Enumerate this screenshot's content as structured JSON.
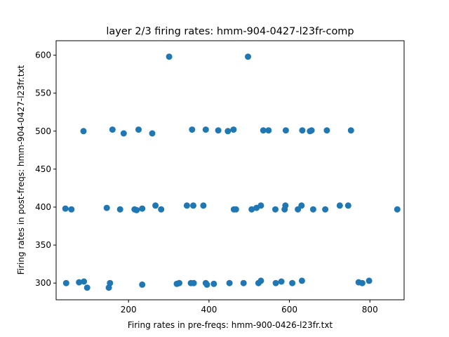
{
  "chart_data": {
    "type": "scatter",
    "title": "layer 2/3 firing rates: hmm-904-0427-l23fr-comp",
    "xlabel": "Firing rates in pre-freqs: hmm-900-0426-l23fr.txt",
    "ylabel": "Firing rates in post-freqs: hmm-904-0427-l23fr.txt",
    "xlim": [
      20,
      885
    ],
    "ylim": [
      278,
      619
    ],
    "xticks": [
      200,
      400,
      600,
      800
    ],
    "yticks": [
      300,
      350,
      400,
      450,
      500,
      550,
      600
    ],
    "marker_color": "#1f77b4",
    "grid": false,
    "points": [
      {
        "x": 301,
        "y": 598
      },
      {
        "x": 497,
        "y": 598
      },
      {
        "x": 88,
        "y": 500
      },
      {
        "x": 160,
        "y": 502
      },
      {
        "x": 188,
        "y": 497
      },
      {
        "x": 225,
        "y": 502
      },
      {
        "x": 259,
        "y": 497
      },
      {
        "x": 358,
        "y": 502
      },
      {
        "x": 392,
        "y": 502
      },
      {
        "x": 423,
        "y": 501
      },
      {
        "x": 447,
        "y": 500
      },
      {
        "x": 461,
        "y": 502
      },
      {
        "x": 535,
        "y": 501
      },
      {
        "x": 548,
        "y": 501
      },
      {
        "x": 591,
        "y": 501
      },
      {
        "x": 632,
        "y": 501
      },
      {
        "x": 651,
        "y": 500
      },
      {
        "x": 655,
        "y": 501
      },
      {
        "x": 693,
        "y": 501
      },
      {
        "x": 753,
        "y": 501
      },
      {
        "x": 43,
        "y": 398
      },
      {
        "x": 58,
        "y": 397
      },
      {
        "x": 146,
        "y": 399
      },
      {
        "x": 179,
        "y": 397
      },
      {
        "x": 215,
        "y": 397
      },
      {
        "x": 220,
        "y": 396
      },
      {
        "x": 234,
        "y": 398
      },
      {
        "x": 267,
        "y": 402
      },
      {
        "x": 281,
        "y": 397
      },
      {
        "x": 345,
        "y": 402
      },
      {
        "x": 361,
        "y": 402
      },
      {
        "x": 386,
        "y": 402
      },
      {
        "x": 462,
        "y": 397
      },
      {
        "x": 467,
        "y": 397
      },
      {
        "x": 506,
        "y": 397
      },
      {
        "x": 518,
        "y": 399
      },
      {
        "x": 529,
        "y": 402
      },
      {
        "x": 565,
        "y": 397
      },
      {
        "x": 588,
        "y": 397
      },
      {
        "x": 590,
        "y": 402
      },
      {
        "x": 621,
        "y": 397
      },
      {
        "x": 630,
        "y": 402
      },
      {
        "x": 659,
        "y": 397
      },
      {
        "x": 689,
        "y": 397
      },
      {
        "x": 725,
        "y": 402
      },
      {
        "x": 746,
        "y": 402
      },
      {
        "x": 868,
        "y": 397
      },
      {
        "x": 45,
        "y": 300
      },
      {
        "x": 77,
        "y": 301
      },
      {
        "x": 89,
        "y": 302
      },
      {
        "x": 97,
        "y": 294
      },
      {
        "x": 151,
        "y": 294
      },
      {
        "x": 154,
        "y": 300
      },
      {
        "x": 234,
        "y": 298
      },
      {
        "x": 320,
        "y": 299
      },
      {
        "x": 326,
        "y": 300
      },
      {
        "x": 355,
        "y": 300
      },
      {
        "x": 362,
        "y": 300
      },
      {
        "x": 392,
        "y": 300
      },
      {
        "x": 395,
        "y": 298
      },
      {
        "x": 412,
        "y": 299
      },
      {
        "x": 451,
        "y": 300
      },
      {
        "x": 486,
        "y": 300
      },
      {
        "x": 523,
        "y": 300
      },
      {
        "x": 529,
        "y": 303
      },
      {
        "x": 566,
        "y": 300
      },
      {
        "x": 580,
        "y": 302
      },
      {
        "x": 607,
        "y": 300
      },
      {
        "x": 631,
        "y": 303
      },
      {
        "x": 772,
        "y": 301
      },
      {
        "x": 781,
        "y": 300
      },
      {
        "x": 798,
        "y": 303
      }
    ]
  }
}
